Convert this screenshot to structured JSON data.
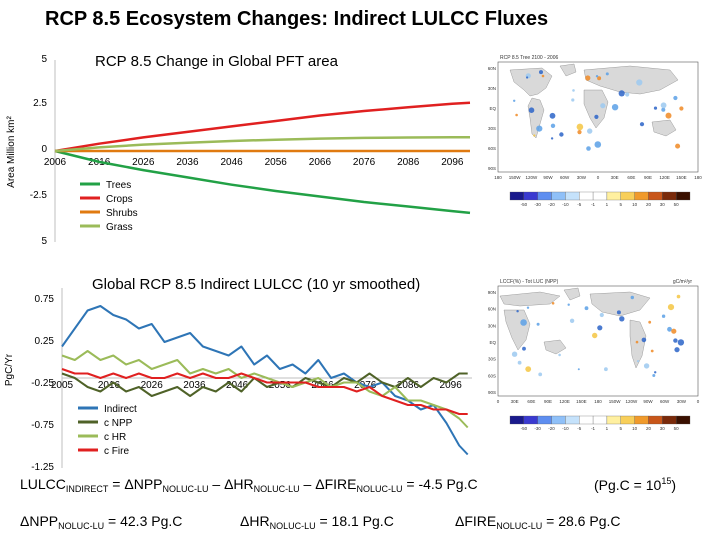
{
  "slide_title": "RCP 8.5 Ecosystem Changes: Indirect LULCC Fluxes",
  "map_top": {
    "header_left": "RCP 8.5 Tree 2100 - 2006",
    "lat_labels": [
      "60N",
      "30N",
      "EQ",
      "30S",
      "60S",
      "90S"
    ],
    "lon_labels": [
      "180",
      "150W",
      "120W",
      "90W",
      "60W",
      "30W",
      "0",
      "30E",
      "60E",
      "90E",
      "120E",
      "150E",
      "180"
    ],
    "colorbar_labels": [
      "-50",
      "-30",
      "-20",
      "-10",
      "-5",
      "-1",
      "1",
      "5",
      "10",
      "20",
      "30",
      "50"
    ]
  },
  "map_bottom": {
    "header_left": "LCCF(%) - Tot LUC (NPP)",
    "header_right": "gC/m²/yr",
    "lat_labels": [
      "90N",
      "60N",
      "30N",
      "EQ",
      "30S",
      "60S",
      "90S"
    ],
    "lon_labels": [
      "0",
      "30E",
      "60E",
      "90E",
      "120E",
      "150E",
      "180",
      "150W",
      "120W",
      "90W",
      "60W",
      "30W",
      "0"
    ],
    "colorbar_labels": [
      "-50",
      "-30",
      "-20",
      "-10",
      "-5",
      "-1",
      "1",
      "5",
      "10",
      "20",
      "30",
      "50"
    ]
  },
  "colors": {
    "trees": "#22a146",
    "crops": "#e02020",
    "shrubs": "#e07a10",
    "grass": "#9bbb59",
    "indirect": "#2e75b6",
    "npp": "#4f6228",
    "hr": "#9bbb59",
    "fire": "#e02020"
  },
  "chart_data": [
    {
      "type": "line",
      "title": "RCP 8.5 Change in Global PFT area",
      "ylabel": "Area Million km²",
      "xlabel": "",
      "x_tick_labels": [
        "2006",
        "2016",
        "2026",
        "2036",
        "2046",
        "2056",
        "2066",
        "2076",
        "2086",
        "2096"
      ],
      "y_tick_labels": [
        "5",
        "2.5",
        "0",
        "-2.5",
        "5"
      ],
      "x": [
        2006,
        2016,
        2026,
        2036,
        2046,
        2056,
        2066,
        2076,
        2086,
        2096,
        2100
      ],
      "xlim": [
        2006,
        2100
      ],
      "ylim": [
        -5,
        5
      ],
      "grid": false,
      "legend_position": "bottom-left",
      "series": [
        {
          "name": "Trees",
          "color_key": "trees",
          "values": [
            0,
            -0.6,
            -1.05,
            -1.45,
            -1.85,
            -2.2,
            -2.5,
            -2.8,
            -3.05,
            -3.3,
            -3.4
          ]
        },
        {
          "name": "Crops",
          "color_key": "crops",
          "values": [
            0,
            0.4,
            0.75,
            1.05,
            1.35,
            1.65,
            1.95,
            2.2,
            2.4,
            2.6,
            2.65
          ]
        },
        {
          "name": "Shrubs",
          "color_key": "shrubs",
          "values": [
            0,
            0,
            0,
            0,
            0,
            0,
            0,
            0,
            0,
            0,
            0
          ]
        },
        {
          "name": "Grass",
          "color_key": "grass",
          "values": [
            0,
            0.2,
            0.35,
            0.45,
            0.55,
            0.62,
            0.68,
            0.72,
            0.74,
            0.76,
            0.76
          ]
        }
      ]
    },
    {
      "type": "line",
      "title": "Global RCP 8.5 Indirect LULCC (10 yr smoothed)",
      "ylabel": "PgC/Yr",
      "xlabel": "",
      "x_tick_labels": [
        "2005",
        "2016",
        "2026",
        "2036",
        "2046",
        "2056",
        "2066",
        "2076",
        "2086",
        "2096"
      ],
      "y_tick_labels": [
        "0.75",
        "0.25",
        "-0.25",
        "-0.75",
        "-1.25"
      ],
      "x": [
        2005,
        2008,
        2011,
        2014,
        2017,
        2020,
        2023,
        2026,
        2029,
        2032,
        2035,
        2038,
        2041,
        2044,
        2047,
        2050,
        2053,
        2056,
        2059,
        2062,
        2065,
        2068,
        2071,
        2074,
        2077,
        2080,
        2083,
        2086,
        2089,
        2092,
        2095,
        2098,
        2100
      ],
      "xlim": [
        2005,
        2101
      ],
      "ylim": [
        -1.25,
        0.75
      ],
      "grid": false,
      "legend_position": "bottom-left",
      "series": [
        {
          "name": "Indirect",
          "color_key": "indirect",
          "values": [
            0.1,
            0.3,
            0.5,
            0.55,
            0.45,
            0.4,
            0.3,
            0.35,
            0.15,
            0.2,
            0.25,
            0.1,
            0.05,
            0.0,
            0.1,
            -0.1,
            0.0,
            -0.15,
            -0.1,
            -0.2,
            -0.05,
            -0.25,
            -0.2,
            -0.3,
            -0.35,
            -0.3,
            -0.45,
            -0.5,
            -0.6,
            -0.55,
            -0.75,
            -1.0,
            -1.1
          ]
        },
        {
          "name": "c NPP",
          "color_key": "npp",
          "values": [
            -0.2,
            -0.25,
            -0.35,
            -0.4,
            -0.3,
            -0.4,
            -0.35,
            -0.45,
            -0.4,
            -0.35,
            -0.45,
            -0.35,
            -0.4,
            -0.3,
            -0.4,
            -0.25,
            -0.35,
            -0.3,
            -0.35,
            -0.25,
            -0.3,
            -0.35,
            -0.25,
            -0.3,
            -0.2,
            -0.3,
            -0.35,
            -0.25,
            -0.35,
            -0.25,
            -0.3,
            -0.2,
            -0.2
          ]
        },
        {
          "name": "c HR",
          "color_key": "hr",
          "values": [
            0.0,
            -0.05,
            0.05,
            -0.05,
            0.0,
            -0.1,
            -0.05,
            -0.15,
            -0.1,
            -0.05,
            -0.2,
            -0.15,
            -0.2,
            -0.15,
            -0.25,
            -0.2,
            -0.25,
            -0.3,
            -0.35,
            -0.3,
            -0.25,
            -0.35,
            -0.3,
            -0.3,
            -0.4,
            -0.45,
            -0.35,
            -0.5,
            -0.5,
            -0.55,
            -0.6,
            -0.7,
            -0.8
          ]
        },
        {
          "name": "c Fire",
          "color_key": "fire",
          "values": [
            -0.15,
            -0.2,
            -0.2,
            -0.25,
            -0.2,
            -0.25,
            -0.2,
            -0.25,
            -0.25,
            -0.2,
            -0.25,
            -0.2,
            -0.25,
            -0.25,
            -0.2,
            -0.25,
            -0.3,
            -0.3,
            -0.3,
            -0.3,
            -0.35,
            -0.35,
            -0.35,
            -0.4,
            -0.35,
            -0.45,
            -0.5,
            -0.55,
            -0.55,
            -0.6,
            -0.6,
            -0.65,
            -0.65
          ]
        }
      ]
    }
  ],
  "equations": {
    "line1": {
      "lhs": "LULCC",
      "lhs_sub": "INDIRECT",
      "t1": " = ΔNPP",
      "t1_sub": "NOLUC-LU",
      "t2": " – ΔHR",
      "t2_sub": "NOLUC-LU",
      "t3": " – ΔFIRE",
      "t3_sub": "NOLUC-LU",
      "result": " = -4.5 Pg.C",
      "unit_note": "(Pg.C = 10",
      "unit_exp": "15",
      "unit_close": ")"
    },
    "line2": {
      "npp": "ΔNPP",
      "npp_sub": "NOLUC-LU",
      "npp_val": " = 42.3 Pg.C",
      "hr": "ΔHR",
      "hr_sub": "NOLUC-LU",
      "hr_val": " = 18.1 Pg.C",
      "fire": "ΔFIRE",
      "fire_sub": "NOLUC-LU",
      "fire_val": " = 28.6 Pg.C"
    }
  }
}
